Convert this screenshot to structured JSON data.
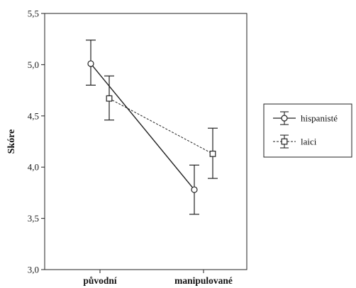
{
  "chart_data": {
    "type": "line",
    "ylabel": "Skóre",
    "xlabel": "",
    "ylim": [
      3.0,
      5.5
    ],
    "yticks": [
      "3,0",
      "3,5",
      "4,0",
      "4,5",
      "5,0",
      "5,5"
    ],
    "categories": [
      "původní",
      "manipulované"
    ],
    "grid": false,
    "legend_position": "right",
    "series": [
      {
        "name": "hispanisté",
        "marker": "circle",
        "line_style": "solid",
        "values": [
          5.01,
          3.78
        ],
        "error_low": [
          4.8,
          3.54
        ],
        "error_high": [
          5.24,
          4.02
        ]
      },
      {
        "name": "laici",
        "marker": "square",
        "line_style": "dashed",
        "values": [
          4.67,
          4.13
        ],
        "error_low": [
          4.46,
          3.89
        ],
        "error_high": [
          4.89,
          4.38
        ]
      }
    ]
  }
}
